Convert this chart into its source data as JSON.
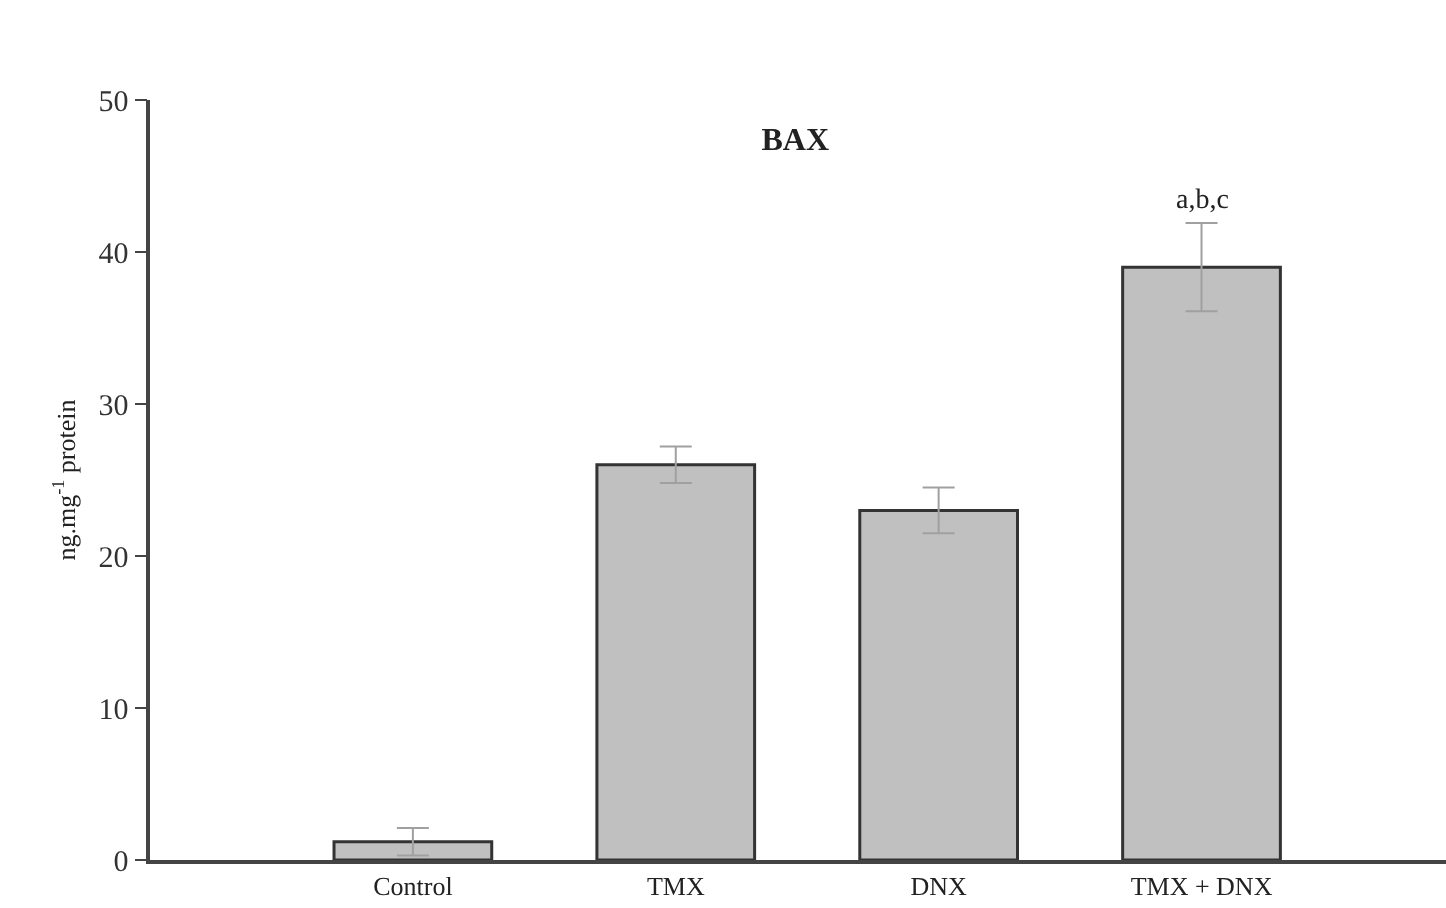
{
  "chart_data": {
    "type": "bar",
    "title": "BAX",
    "ylabel": "ng.mg$^{-1}$ protein",
    "categories": [
      "Control",
      "TMX",
      "DNX",
      "TMX + DNX"
    ],
    "values": [
      1.2,
      26.0,
      23.0,
      39.0
    ],
    "errors": [
      0.9,
      1.2,
      1.5,
      2.9
    ],
    "color": "#c0c0c0",
    "ylim": [
      0,
      50
    ],
    "yticks": [
      0,
      10,
      20,
      30,
      40,
      50
    ],
    "annotations": [
      "a,b,c"
    ]
  }
}
